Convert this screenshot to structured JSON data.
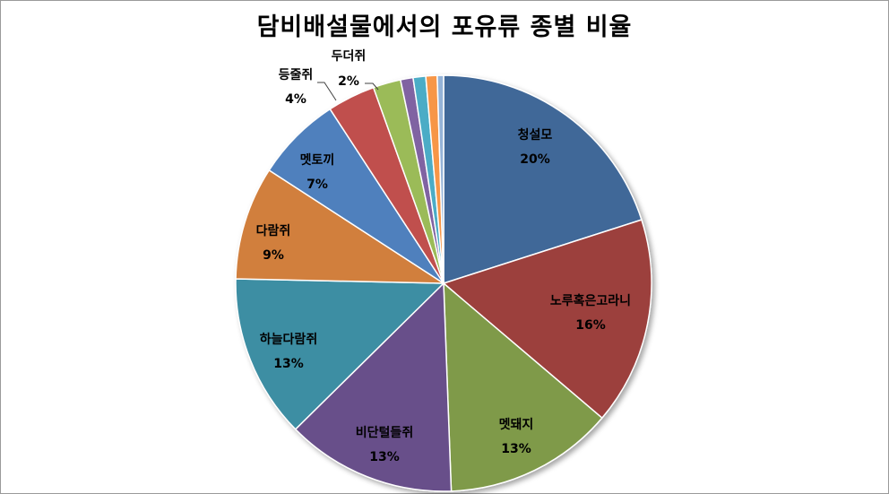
{
  "chart_data": {
    "type": "pie",
    "title": "담비배설물에서의 포유류 종별 비율",
    "slices": [
      {
        "name": "청설모",
        "label": "20%",
        "value": 20.5,
        "color": "#416898"
      },
      {
        "name": "노루혹은고라니",
        "label": "16%",
        "value": 16.5,
        "color": "#9c3f3c"
      },
      {
        "name": "멧돼지",
        "label": "13%",
        "value": 13.5,
        "color": "#7f9a49"
      },
      {
        "name": "비단털들쥐",
        "label": "13%",
        "value": 13.5,
        "color": "#684f8a"
      },
      {
        "name": "하늘다람쥐",
        "label": "13%",
        "value": 13.0,
        "color": "#3e8ea3"
      },
      {
        "name": "다람쥐",
        "label": "9%",
        "value": 9.0,
        "color": "#d17f3e"
      },
      {
        "name": "멧토끼",
        "label": "7%",
        "value": 6.8,
        "color": "#4f80bd"
      },
      {
        "name": "등줄쥐",
        "label": "4%",
        "value": 3.8,
        "color": "#c0504d"
      },
      {
        "name": "두더쥐",
        "label": "2%",
        "value": 2.2,
        "color": "#9bbb59"
      },
      {
        "name": "",
        "label": "",
        "value": 1.0,
        "color": "#8064a2"
      },
      {
        "name": "",
        "label": "",
        "value": 1.0,
        "color": "#4bacc6"
      },
      {
        "name": "",
        "label": "",
        "value": 0.9,
        "color": "#f79646"
      },
      {
        "name": "",
        "label": "",
        "value": 0.5,
        "color": "#95b3d7"
      }
    ]
  }
}
